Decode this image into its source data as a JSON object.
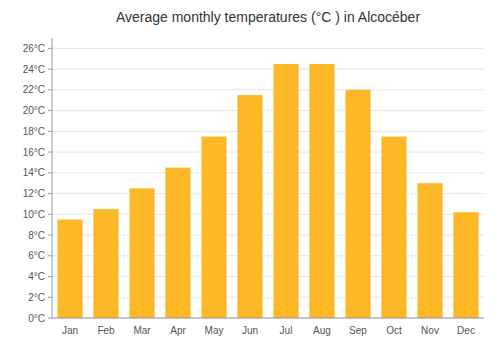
{
  "chart_data": {
    "type": "bar",
    "title": "Average monthly temperatures (°C ) in Alcocéber",
    "categories": [
      "Jan",
      "Feb",
      "Mar",
      "Apr",
      "May",
      "Jun",
      "Jul",
      "Aug",
      "Sep",
      "Oct",
      "Nov",
      "Dec"
    ],
    "values": [
      9.5,
      10.5,
      12.5,
      14.5,
      17.5,
      21.5,
      24.5,
      24.5,
      22.0,
      17.5,
      13.0,
      10.2
    ],
    "color": "#FDB827",
    "ylim": [
      0,
      27
    ],
    "yticks": [
      {
        "value": 0,
        "label": "0°C"
      },
      {
        "value": 2,
        "label": "2°C"
      },
      {
        "value": 4,
        "label": "4°C"
      },
      {
        "value": 6,
        "label": "6°C"
      },
      {
        "value": 8,
        "label": "8°C"
      },
      {
        "value": 10,
        "label": "10°C"
      },
      {
        "value": 12,
        "label": "12°C"
      },
      {
        "value": 14,
        "label": "14°C"
      },
      {
        "value": 16,
        "label": "16°C"
      },
      {
        "value": 18,
        "label": "18°C"
      },
      {
        "value": 20,
        "label": "20°C"
      },
      {
        "value": 22,
        "label": "22°C"
      },
      {
        "value": 24,
        "label": "24°C"
      },
      {
        "value": 26,
        "label": "26°C"
      }
    ],
    "grid": true
  }
}
